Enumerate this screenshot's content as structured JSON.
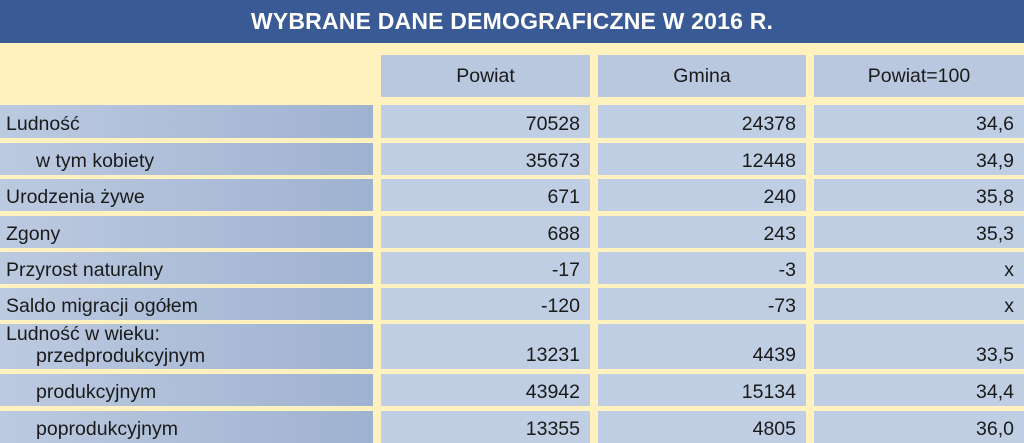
{
  "title": "WYBRANE DANE DEMOGRAFICZNE W 2016 R.",
  "headers": [
    "Powiat",
    "Gmina",
    "Powiat=100"
  ],
  "rows": [
    {
      "label": "Ludność",
      "values": [
        "70528",
        "24378",
        "34,6"
      ]
    },
    {
      "label": "w tym kobiety",
      "values": [
        "35673",
        "12448",
        "34,9"
      ]
    },
    {
      "label": "Urodzenia żywe",
      "values": [
        "671",
        "240",
        "35,8"
      ]
    },
    {
      "label": "Zgony",
      "values": [
        "688",
        "243",
        "35,3"
      ]
    },
    {
      "label": "Przyrost naturalny",
      "values": [
        "-17",
        "-3",
        "x"
      ]
    },
    {
      "label": "Saldo migracji ogółem",
      "values": [
        "-120",
        "-73",
        "x"
      ]
    },
    {
      "label": "Ludność w wieku:",
      "sublabel": "przedprodukcyjnym",
      "values": [
        "13231",
        "4439",
        "33,5"
      ]
    },
    {
      "label": "produkcyjnym",
      "values": [
        "43942",
        "15134",
        "34,4"
      ]
    },
    {
      "label": "poprodukcyjnym",
      "values": [
        "13355",
        "4805",
        "36,0"
      ]
    }
  ]
}
